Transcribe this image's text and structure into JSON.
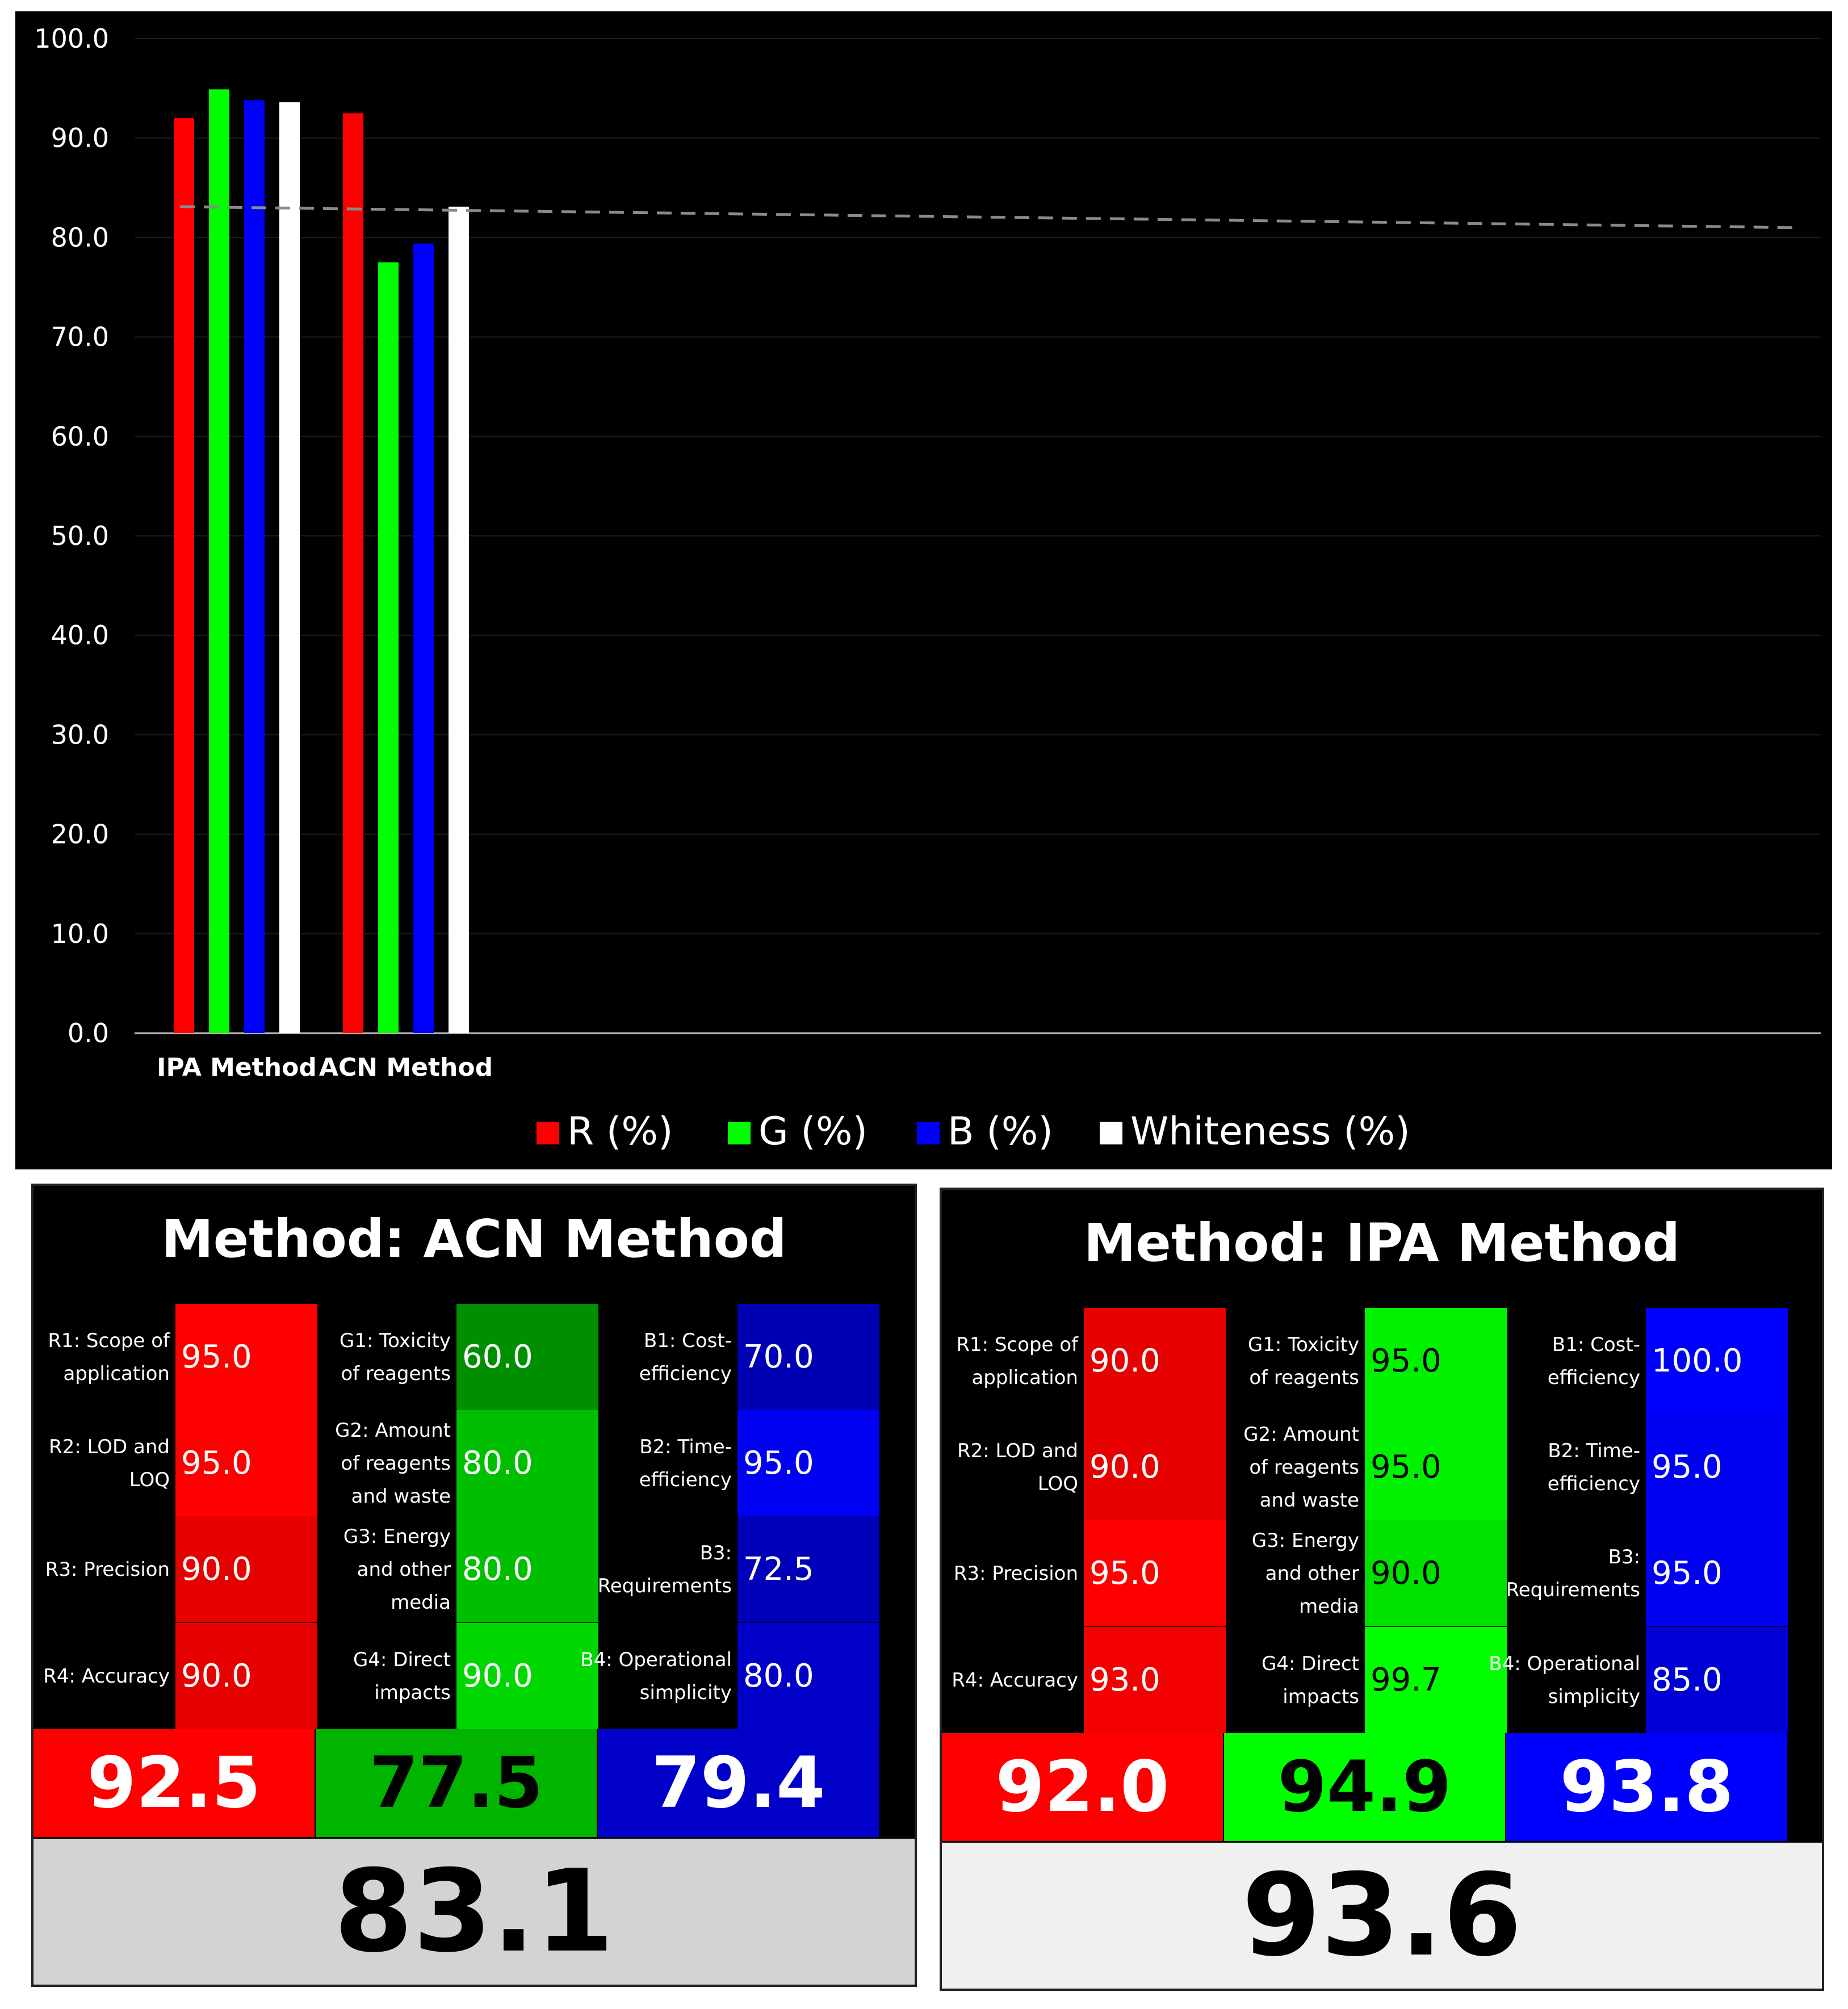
{
  "chart_data": {
    "type": "bar",
    "categories": [
      "IPA Method",
      "ACN Method"
    ],
    "series": [
      {
        "name": "R (%)",
        "color": "#ff0000",
        "values": [
          92.0,
          92.5
        ]
      },
      {
        "name": "G (%)",
        "color": "#00ff00",
        "values": [
          94.9,
          77.5
        ]
      },
      {
        "name": "B (%)",
        "color": "#0000ff",
        "values": [
          93.8,
          79.4
        ]
      },
      {
        "name": "Whiteness (%)",
        "color": "#ffffff",
        "values": [
          93.6,
          83.1
        ]
      }
    ],
    "yticks": [
      "100.0",
      "90.0",
      "80.0",
      "70.0",
      "60.0",
      "50.0",
      "40.0",
      "30.0",
      "20.0",
      "10.0",
      "0.0"
    ],
    "ylim": [
      0,
      100
    ],
    "reference_line": {
      "style": "dashed",
      "start": 83.1,
      "end": 81.0
    },
    "grid": true,
    "legend": "bottom-center",
    "background": "#000000"
  },
  "cards": [
    {
      "title": "Method: ACN Method",
      "whiteness": "83.1",
      "whiteness_bg": "#d3d3d3",
      "columns": [
        {
          "score": "92.5",
          "score_bg": "#ff0000",
          "score_color": "#ffffff",
          "value_color": "#ffffff",
          "rows": [
            {
              "label": "R1: Scope of\napplication",
              "value": "95.0",
              "bg": "#ff0000"
            },
            {
              "label": "R2: LOD and\nLOQ",
              "value": "95.0",
              "bg": "#ff0000"
            },
            {
              "label": "R3: Precision",
              "value": "90.0",
              "bg": "#e60000"
            },
            {
              "label": "R4: Accuracy",
              "value": "90.0",
              "bg": "#e60000"
            }
          ]
        },
        {
          "score": "77.5",
          "score_bg": "#00b400",
          "score_color": "#000000",
          "value_color": "#ffffff",
          "rows": [
            {
              "label": "G1: Toxicity\nof reagents",
              "value": "60.0",
              "bg": "#008f00"
            },
            {
              "label": "G2: Amount\nof reagents\nand waste",
              "value": "80.0",
              "bg": "#00bf00"
            },
            {
              "label": "G3: Energy\nand other\nmedia",
              "value": "80.0",
              "bg": "#00bf00"
            },
            {
              "label": "G4: Direct\nimpacts",
              "value": "90.0",
              "bg": "#00d700"
            }
          ]
        },
        {
          "score": "79.4",
          "score_bg": "#0000c8",
          "score_color": "#ffffff",
          "value_color": "#ffffff",
          "rows": [
            {
              "label": "B1: Cost-\nefficiency",
              "value": "70.0",
              "bg": "#0000b3"
            },
            {
              "label": "B2: Time-\nefficiency",
              "value": "95.0",
              "bg": "#0000f2"
            },
            {
              "label": "B3:\nRequirements",
              "value": "72.5",
              "bg": "#0000b8"
            },
            {
              "label": "B4: Operational\nsimplicity",
              "value": "80.0",
              "bg": "#0000c8"
            }
          ]
        }
      ]
    },
    {
      "title": "Method: IPA Method",
      "whiteness": "93.6",
      "whiteness_bg": "#f0f0f0",
      "columns": [
        {
          "score": "92.0",
          "score_bg": "#ff0000",
          "score_color": "#ffffff",
          "value_color": "#ffffff",
          "rows": [
            {
              "label": "R1: Scope of\napplication",
              "value": "90.0",
              "bg": "#e60000"
            },
            {
              "label": "R2: LOD and\nLOQ",
              "value": "90.0",
              "bg": "#e60000"
            },
            {
              "label": "R3: Precision",
              "value": "95.0",
              "bg": "#ff0000"
            },
            {
              "label": "R4: Accuracy",
              "value": "93.0",
              "bg": "#f50000"
            }
          ]
        },
        {
          "score": "94.9",
          "score_bg": "#00ff00",
          "score_color": "#000000",
          "value_color": "#000000",
          "rows": [
            {
              "label": "G1: Toxicity\nof reagents",
              "value": "95.0",
              "bg": "#00f200"
            },
            {
              "label": "G2: Amount\nof reagents\nand waste",
              "value": "95.0",
              "bg": "#00f200"
            },
            {
              "label": "G3: Energy\nand other\nmedia",
              "value": "90.0",
              "bg": "#00e100"
            },
            {
              "label": "G4: Direct\nimpacts",
              "value": "99.7",
              "bg": "#00ff00"
            }
          ]
        },
        {
          "score": "93.8",
          "score_bg": "#0000ff",
          "score_color": "#ffffff",
          "value_color": "#ffffff",
          "rows": [
            {
              "label": "B1: Cost-\nefficiency",
              "value": "100.0",
              "bg": "#0000ff"
            },
            {
              "label": "B2: Time-\nefficiency",
              "value": "95.0",
              "bg": "#0000f2"
            },
            {
              "label": "B3:\nRequirements",
              "value": "95.0",
              "bg": "#0000f2"
            },
            {
              "label": "B4: Operational\nsimplicity",
              "value": "85.0",
              "bg": "#0000d6"
            }
          ]
        }
      ]
    }
  ]
}
